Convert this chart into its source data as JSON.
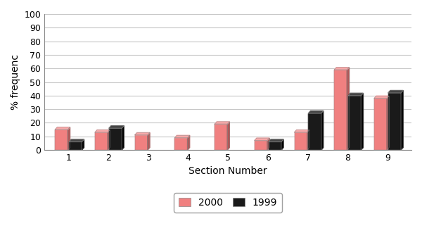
{
  "sections": [
    1,
    2,
    3,
    4,
    5,
    6,
    7,
    8,
    9
  ],
  "values_2000": [
    15,
    13,
    11,
    9,
    19,
    7,
    13,
    59,
    38
  ],
  "values_1999": [
    6,
    16,
    0,
    0,
    0,
    6,
    27,
    40,
    42
  ],
  "color_2000": "#F08080",
  "color_2000_dark": "#B05858",
  "color_2000_top": "#F8A8A8",
  "color_1999": "#1A1A1A",
  "color_1999_dark": "#000000",
  "color_1999_top": "#444444",
  "xlabel": "Section Number",
  "ylabel": "% frequenc",
  "ylim": [
    0,
    100
  ],
  "yticks": [
    0,
    10,
    20,
    30,
    40,
    50,
    60,
    70,
    80,
    90,
    100
  ],
  "legend_2000": "2000",
  "legend_1999": "1999",
  "bar_width": 0.32,
  "depth": 3,
  "background_color": "#ffffff",
  "plot_bg_color": "#ffffff",
  "grid_color": "#c8c8c8"
}
